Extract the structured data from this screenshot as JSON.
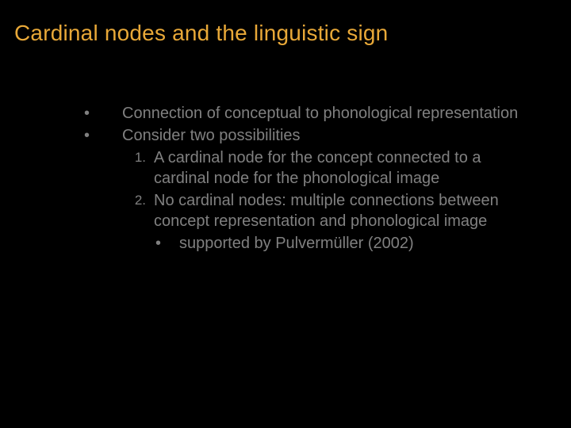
{
  "slide": {
    "title": "Cardinal nodes and the linguistic sign",
    "title_color": "#e8a838",
    "title_fontsize": 28,
    "background_color": "#000000",
    "body_color": "#808080",
    "body_fontsize": 20,
    "bullets": [
      {
        "marker": "•",
        "text": "Connection of conceptual to phonological representation"
      },
      {
        "marker": "•",
        "text": "Consider two possibilities",
        "numbered": [
          {
            "marker": "1.",
            "text": "A cardinal node for the concept connected to a cardinal node for the phonological image"
          },
          {
            "marker": "2.",
            "text": "No cardinal nodes: multiple connections between concept representation and phonological image",
            "sub": [
              {
                "marker": "•",
                "text": "supported by Pulvermüller (2002)"
              }
            ]
          }
        ]
      }
    ]
  }
}
